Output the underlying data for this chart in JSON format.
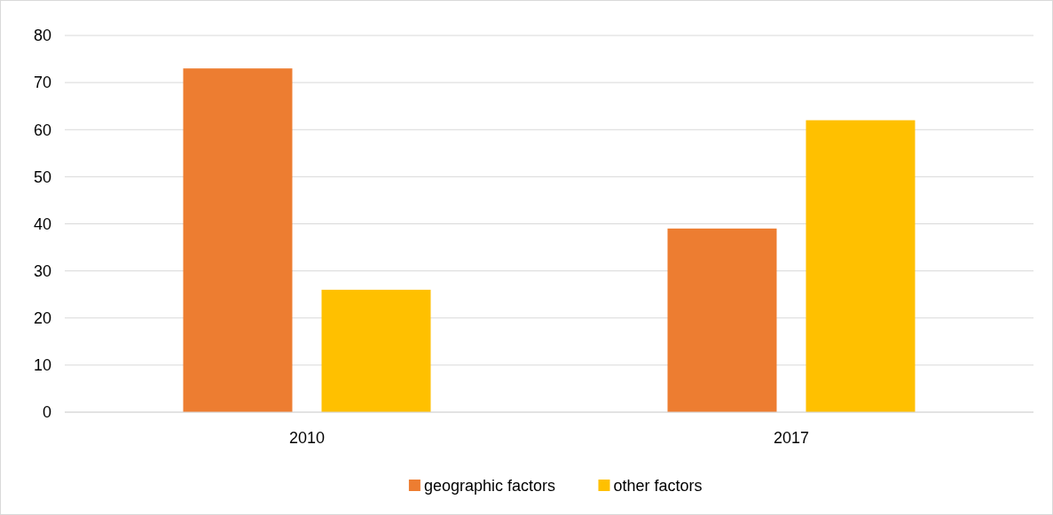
{
  "chart_data": {
    "type": "bar",
    "categories": [
      "2010",
      "2017"
    ],
    "series": [
      {
        "name": "geographic factors",
        "color": "#ed7d31",
        "values": [
          73,
          39
        ]
      },
      {
        "name": "other factors",
        "color": "#ffc000",
        "values": [
          26,
          62
        ]
      }
    ],
    "ylim": [
      0,
      80
    ],
    "yticks": [
      0,
      10,
      20,
      30,
      40,
      50,
      60,
      70,
      80
    ],
    "grid": "y",
    "legend": "bottom"
  }
}
